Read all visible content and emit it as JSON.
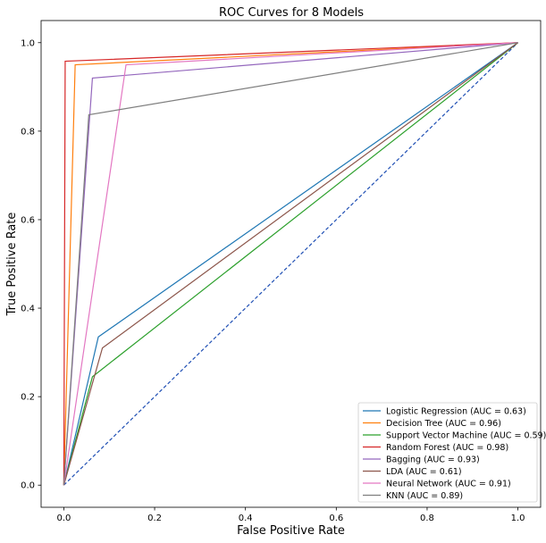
{
  "chart_data": {
    "type": "line",
    "title": "ROC Curves for 8 Models",
    "xlabel": "False Positive Rate",
    "ylabel": "True Positive Rate",
    "xlim": [
      -0.05,
      1.05
    ],
    "ylim": [
      -0.05,
      1.05
    ],
    "xticks": [
      "0.0",
      "0.2",
      "0.4",
      "0.6",
      "0.8",
      "1.0"
    ],
    "yticks": [
      "0.0",
      "0.2",
      "0.4",
      "0.6",
      "0.8",
      "1.0"
    ],
    "grid": false,
    "legend_position": "lower-right",
    "series": [
      {
        "name": "Logistic Regression (AUC = 0.63)",
        "color": "#1f77b4",
        "x": [
          0,
          0.076,
          1
        ],
        "y": [
          0,
          0.335,
          1
        ]
      },
      {
        "name": "Decision Tree (AUC = 0.96)",
        "color": "#ff7f0e",
        "x": [
          0,
          0.025,
          1
        ],
        "y": [
          0,
          0.95,
          1
        ]
      },
      {
        "name": "Support Vector Machine (AUC = 0.59)",
        "color": "#2ca02c",
        "x": [
          0,
          0.063,
          1
        ],
        "y": [
          0,
          0.245,
          1
        ]
      },
      {
        "name": "Random Forest (AUC = 0.98)",
        "color": "#d62728",
        "x": [
          0,
          0.003,
          1
        ],
        "y": [
          0,
          0.958,
          1
        ]
      },
      {
        "name": "Bagging (AUC = 0.93)",
        "color": "#9467bd",
        "x": [
          0,
          0.063,
          1
        ],
        "y": [
          0,
          0.92,
          1
        ]
      },
      {
        "name": "LDA (AUC = 0.61)",
        "color": "#8c564b",
        "x": [
          0,
          0.085,
          1
        ],
        "y": [
          0,
          0.31,
          1
        ]
      },
      {
        "name": "Neural Network (AUC = 0.91)",
        "color": "#e377c2",
        "x": [
          0,
          0.137,
          1
        ],
        "y": [
          0,
          0.95,
          1
        ]
      },
      {
        "name": "KNN (AUC = 0.89)",
        "color": "#7f7f7f",
        "x": [
          0,
          0.055,
          1
        ],
        "y": [
          0,
          0.837,
          1
        ]
      }
    ],
    "reference_line": {
      "x": [
        0,
        1
      ],
      "y": [
        0,
        1
      ],
      "color": "#1f4fb4",
      "style": "dashed"
    }
  }
}
